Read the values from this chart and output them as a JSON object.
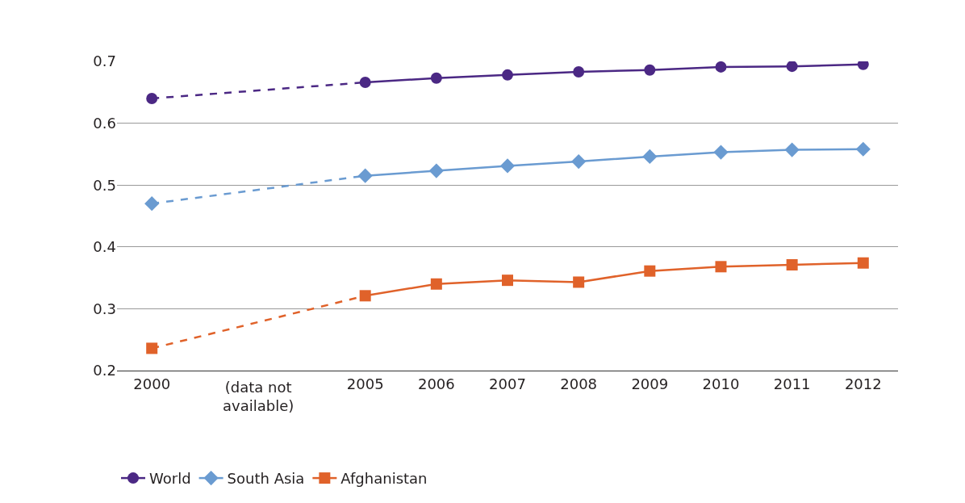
{
  "chart_data": {
    "type": "line",
    "categories": [
      "2000",
      null,
      null,
      "2005",
      "2006",
      "2007",
      "2008",
      "2009",
      "2010",
      "2011",
      "2012"
    ],
    "series": [
      {
        "name": "World",
        "color": "#4b2884",
        "marker": "circle",
        "values": [
          0.64,
          null,
          null,
          0.666,
          0.673,
          0.678,
          0.683,
          0.686,
          0.691,
          0.692,
          0.695
        ]
      },
      {
        "name": "South Asia",
        "color": "#6a9bd1",
        "marker": "diamond",
        "values": [
          0.47,
          null,
          null,
          0.515,
          0.523,
          0.531,
          0.538,
          0.546,
          0.553,
          0.557,
          0.558
        ]
      },
      {
        "name": "Afghanistan",
        "color": "#e0622a",
        "marker": "square",
        "values": [
          0.236,
          null,
          null,
          0.321,
          0.34,
          0.346,
          0.343,
          0.361,
          0.368,
          0.371,
          0.374
        ]
      }
    ],
    "ylim": [
      0.2,
      0.7
    ],
    "yticks": [
      0.2,
      0.3,
      0.4,
      0.5,
      0.6,
      0.7
    ],
    "grid": "y",
    "legend": "bottom left",
    "annotations": [
      "(data not\navailable)"
    ]
  }
}
